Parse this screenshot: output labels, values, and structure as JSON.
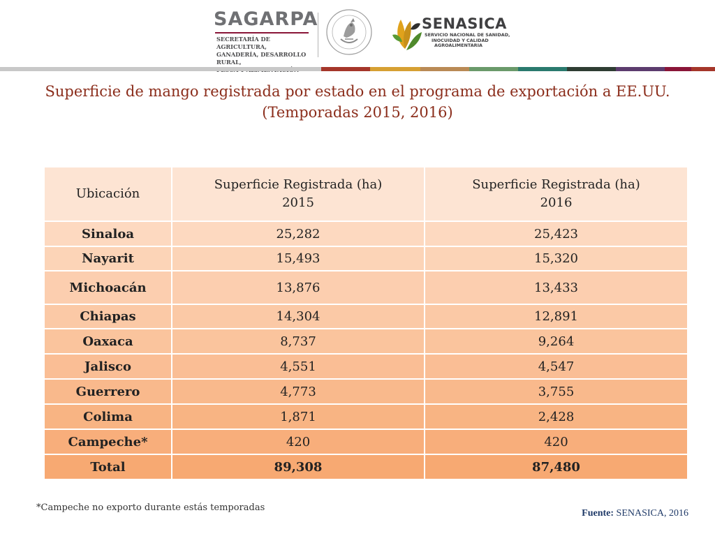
{
  "header": {
    "sagarpa_name": "SAGARPA",
    "sagarpa_lines": [
      "SECRETARÍA DE AGRICULTURA,",
      "GANADERÍA, DESARROLLO RURAL,",
      "PESCA Y ALIMENTACIÓN"
    ],
    "seal_icon": "mexico-national-seal-icon",
    "senasica_name": "SENASICA",
    "senasica_lines": [
      "SERVICIO NACIONAL DE SANIDAD,",
      "INOCUIDAD Y CALIDAD",
      "AGROALIMENTARIA"
    ],
    "band_colors": [
      "#c8c8c8",
      "#a5362a",
      "#d6a032",
      "#b98a55",
      "#6a9a6a",
      "#2a7a6e",
      "#2e3d33",
      "#5c3c6e",
      "#8a1538",
      "#a5362a"
    ]
  },
  "title": {
    "line1": "Superficie de mango registrada por estado en el programa de exportación a EE.UU.",
    "line2": "(Temporadas 2015, 2016)"
  },
  "table": {
    "headers": [
      {
        "line1": "Ubicación",
        "line2": ""
      },
      {
        "line1": "Superficie Registrada  (ha)",
        "line2": "2015"
      },
      {
        "line1": "Superficie Registrada  (ha)",
        "line2": "2016"
      }
    ],
    "rows": [
      {
        "loc": "Sinaloa",
        "y2015": "25,282",
        "y2016": "25,423"
      },
      {
        "loc": "Nayarit",
        "y2015": "15,493",
        "y2016": "15,320"
      },
      {
        "loc": "Michoacán",
        "y2015": "13,876",
        "y2016": "13,433"
      },
      {
        "loc": "Chiapas",
        "y2015": "14,304",
        "y2016": "12,891"
      },
      {
        "loc": "Oaxaca",
        "y2015": "8,737",
        "y2016": "9,264"
      },
      {
        "loc": "Jalisco",
        "y2015": "4,551",
        "y2016": "4,547"
      },
      {
        "loc": "Guerrero",
        "y2015": "4,773",
        "y2016": "3,755"
      },
      {
        "loc": "Colima",
        "y2015": "1,871",
        "y2016": "2,428"
      },
      {
        "loc": "Campeche*",
        "y2015": "420",
        "y2016": "420"
      }
    ],
    "total": {
      "loc": "Total",
      "y2015": "89,308",
      "y2016": "87,480"
    },
    "colors": {
      "header_bg": "#fde4d3",
      "gradient_top": "#fdd9c0",
      "gradient_bottom": "#f7a972"
    }
  },
  "footer": {
    "note": "*Campeche no exporto durante estás temporadas",
    "source_label": "Fuente:",
    "source_value": " SENASICA, 2016"
  }
}
